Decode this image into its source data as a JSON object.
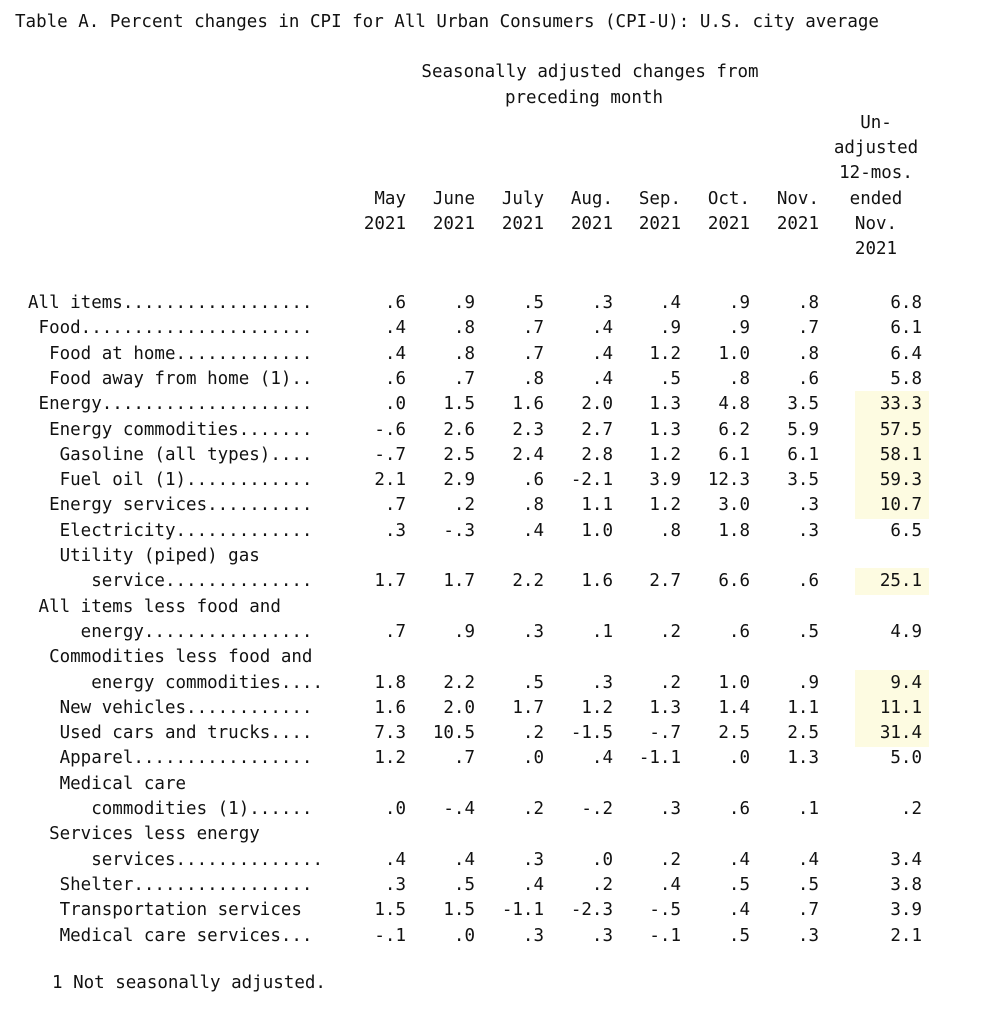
{
  "title": "Table A. Percent changes in CPI for All Urban Consumers (CPI-U): U.S. city average",
  "header": {
    "seasonal_line1": "Seasonally adjusted changes from",
    "seasonal_line2": "preceding month",
    "columns": [
      {
        "line1": "May",
        "line2": "2021"
      },
      {
        "line1": "June",
        "line2": "2021"
      },
      {
        "line1": "July",
        "line2": "2021"
      },
      {
        "line1": "Aug.",
        "line2": "2021"
      },
      {
        "line1": "Sep.",
        "line2": "2021"
      },
      {
        "line1": "Oct.",
        "line2": "2021"
      },
      {
        "line1": "Nov.",
        "line2": "2021"
      }
    ],
    "unadjusted": [
      "Un-",
      "adjusted",
      "12-mos.",
      "ended",
      "Nov.",
      "2021"
    ]
  },
  "highlight_color": "#fdfbe1",
  "rows": [
    {
      "label": "All items..................",
      "values": [
        ".6",
        ".9",
        ".5",
        ".3",
        ".4",
        ".9",
        ".8",
        "6.8"
      ],
      "highlight": false
    },
    {
      "label": " Food......................",
      "values": [
        ".4",
        ".8",
        ".7",
        ".4",
        ".9",
        ".9",
        ".7",
        "6.1"
      ],
      "highlight": false
    },
    {
      "label": "  Food at home.............",
      "values": [
        ".4",
        ".8",
        ".7",
        ".4",
        "1.2",
        "1.0",
        ".8",
        "6.4"
      ],
      "highlight": false
    },
    {
      "label": "  Food away from home (1)..",
      "values": [
        ".6",
        ".7",
        ".8",
        ".4",
        ".5",
        ".8",
        ".6",
        "5.8"
      ],
      "highlight": false
    },
    {
      "label": " Energy....................",
      "values": [
        ".0",
        "1.5",
        "1.6",
        "2.0",
        "1.3",
        "4.8",
        "3.5",
        "33.3"
      ],
      "highlight": true
    },
    {
      "label": "  Energy commodities.......",
      "values": [
        "-.6",
        "2.6",
        "2.3",
        "2.7",
        "1.3",
        "6.2",
        "5.9",
        "57.5"
      ],
      "highlight": true
    },
    {
      "label": "   Gasoline (all types)....",
      "values": [
        "-.7",
        "2.5",
        "2.4",
        "2.8",
        "1.2",
        "6.1",
        "6.1",
        "58.1"
      ],
      "highlight": true
    },
    {
      "label": "   Fuel oil (1)............",
      "values": [
        "2.1",
        "2.9",
        ".6",
        "-2.1",
        "3.9",
        "12.3",
        "3.5",
        "59.3"
      ],
      "highlight": true
    },
    {
      "label": "  Energy services..........",
      "values": [
        ".7",
        ".2",
        ".8",
        "1.1",
        "1.2",
        "3.0",
        ".3",
        "10.7"
      ],
      "highlight": true
    },
    {
      "label": "   Electricity.............",
      "values": [
        ".3",
        "-.3",
        ".4",
        "1.0",
        ".8",
        "1.8",
        ".3",
        "6.5"
      ],
      "highlight": false
    },
    {
      "label": "   Utility (piped) gas",
      "values": null,
      "highlight": false
    },
    {
      "label": "      service..............",
      "values": [
        "1.7",
        "1.7",
        "2.2",
        "1.6",
        "2.7",
        "6.6",
        ".6",
        "25.1"
      ],
      "highlight": true
    },
    {
      "label": " All items less food and",
      "values": null,
      "highlight": false
    },
    {
      "label": "     energy................",
      "values": [
        ".7",
        ".9",
        ".3",
        ".1",
        ".2",
        ".6",
        ".5",
        "4.9"
      ],
      "highlight": false
    },
    {
      "label": "  Commodities less food and",
      "values": null,
      "highlight": false
    },
    {
      "label": "      energy commodities....",
      "values": [
        "1.8",
        "2.2",
        ".5",
        ".3",
        ".2",
        "1.0",
        ".9",
        "9.4"
      ],
      "highlight": true
    },
    {
      "label": "   New vehicles............",
      "values": [
        "1.6",
        "2.0",
        "1.7",
        "1.2",
        "1.3",
        "1.4",
        "1.1",
        "11.1"
      ],
      "highlight": true
    },
    {
      "label": "   Used cars and trucks....",
      "values": [
        "7.3",
        "10.5",
        ".2",
        "-1.5",
        "-.7",
        "2.5",
        "2.5",
        "31.4"
      ],
      "highlight": true
    },
    {
      "label": "   Apparel.................",
      "values": [
        "1.2",
        ".7",
        ".0",
        ".4",
        "-1.1",
        ".0",
        "1.3",
        "5.0"
      ],
      "highlight": false
    },
    {
      "label": "   Medical care",
      "values": null,
      "highlight": false
    },
    {
      "label": "      commodities (1)......",
      "values": [
        ".0",
        "-.4",
        ".2",
        "-.2",
        ".3",
        ".6",
        ".1",
        ".2"
      ],
      "highlight": false
    },
    {
      "label": "  Services less energy",
      "values": null,
      "highlight": false
    },
    {
      "label": "      services..............",
      "values": [
        ".4",
        ".4",
        ".3",
        ".0",
        ".2",
        ".4",
        ".4",
        "3.4"
      ],
      "highlight": false
    },
    {
      "label": "   Shelter.................",
      "values": [
        ".3",
        ".5",
        ".4",
        ".2",
        ".4",
        ".5",
        ".5",
        "3.8"
      ],
      "highlight": false
    },
    {
      "label": "   Transportation services",
      "values": [
        "1.5",
        "1.5",
        "-1.1",
        "-2.3",
        "-.5",
        ".4",
        ".7",
        "3.9"
      ],
      "highlight": false
    },
    {
      "label": "   Medical care services...",
      "values": [
        "-.1",
        ".0",
        ".3",
        ".3",
        "-.1",
        ".5",
        ".3",
        "2.1"
      ],
      "highlight": false
    }
  ],
  "footnote": "1 Not seasonally adjusted."
}
